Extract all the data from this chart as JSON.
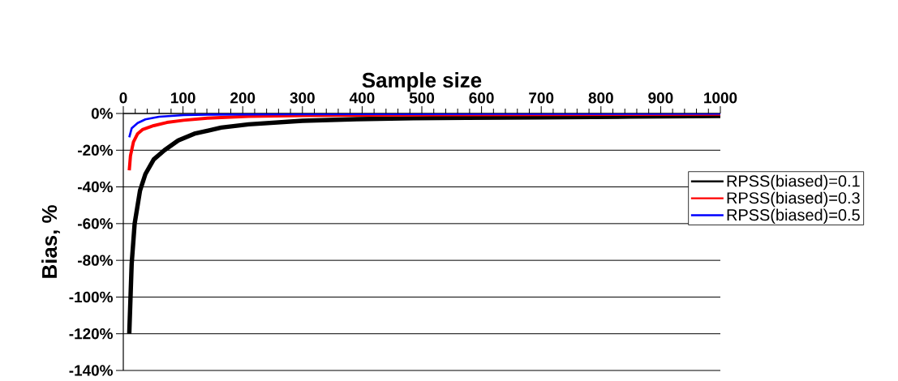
{
  "chart_data": {
    "type": "line",
    "xlabel": "Sample size",
    "ylabel": "Bias, %",
    "xlim": [
      0,
      1000
    ],
    "ylim": [
      -140,
      0
    ],
    "xticks": [
      0,
      {
        "value": 20,
        "label": null
      },
      {
        "value": 40,
        "label": null
      },
      {
        "value": 60,
        "label": null
      },
      {
        "value": 80,
        "label": null
      },
      100,
      {
        "value": 120,
        "label": null
      },
      {
        "value": 140,
        "label": null
      },
      {
        "value": 160,
        "label": null
      },
      {
        "value": 180,
        "label": null
      },
      200,
      {
        "value": 220,
        "label": null
      },
      {
        "value": 240,
        "label": null
      },
      {
        "value": 260,
        "label": null
      },
      {
        "value": 280,
        "label": null
      },
      300,
      {
        "value": 320,
        "label": null
      },
      {
        "value": 340,
        "label": null
      },
      {
        "value": 360,
        "label": null
      },
      {
        "value": 380,
        "label": null
      },
      400,
      {
        "value": 420,
        "label": null
      },
      {
        "value": 440,
        "label": null
      },
      {
        "value": 460,
        "label": null
      },
      {
        "value": 480,
        "label": null
      },
      500,
      {
        "value": 520,
        "label": null
      },
      {
        "value": 540,
        "label": null
      },
      {
        "value": 560,
        "label": null
      },
      {
        "value": 580,
        "label": null
      },
      600,
      {
        "value": 620,
        "label": null
      },
      {
        "value": 640,
        "label": null
      },
      {
        "value": 660,
        "label": null
      },
      {
        "value": 680,
        "label": null
      },
      700,
      {
        "value": 720,
        "label": null
      },
      {
        "value": 740,
        "label": null
      },
      {
        "value": 760,
        "label": null
      },
      {
        "value": 780,
        "label": null
      },
      800,
      {
        "value": 820,
        "label": null
      },
      {
        "value": 840,
        "label": null
      },
      {
        "value": 860,
        "label": null
      },
      {
        "value": 880,
        "label": null
      },
      900,
      {
        "value": 920,
        "label": null
      },
      {
        "value": 940,
        "label": null
      },
      {
        "value": 960,
        "label": null
      },
      {
        "value": 980,
        "label": null
      },
      1000
    ],
    "yticks": [
      {
        "value": 0,
        "label": "0%"
      },
      {
        "value": -20,
        "label": "-20%"
      },
      {
        "value": -40,
        "label": "-40%"
      },
      {
        "value": -60,
        "label": "-60%"
      },
      {
        "value": -80,
        "label": "-80%"
      },
      {
        "value": -100,
        "label": "-100%"
      },
      {
        "value": -120,
        "label": "-120%"
      },
      {
        "value": -140,
        "label": "-140%"
      }
    ],
    "grid": "y",
    "legend": "right",
    "marker": "none",
    "line_style": "solid",
    "series": [
      {
        "name": "RPSS(biased)=0.1",
        "color": "#000000",
        "x": [
          10,
          14,
          19,
          28,
          37,
          51,
          69,
          92,
          119,
          164,
          210,
          300,
          391,
          486,
          575,
          697,
          850,
          1000
        ],
        "values": [
          -120,
          -82,
          -60,
          -42,
          -33,
          -25,
          -20,
          -14.7,
          -11,
          -7.7,
          -5.9,
          -4,
          -3.1,
          -2.6,
          -2.3,
          -2.1,
          -1.7,
          -1.4
        ]
      },
      {
        "name": "RPSS(biased)=0.3",
        "color": "#ff0000",
        "x": [
          10,
          12,
          17,
          24,
          32,
          51,
          73,
          101,
          141,
          210,
          300,
          400,
          550,
          700,
          850,
          1000
        ],
        "values": [
          -31,
          -23,
          -15.5,
          -11,
          -8.8,
          -6.6,
          -4.9,
          -3.7,
          -2.5,
          -1.5,
          -1.1,
          -0.9,
          -0.7,
          -0.5,
          -0.4,
          -0.3
        ]
      },
      {
        "name": "RPSS(biased)=0.5",
        "color": "#0000ff",
        "x": [
          10,
          14,
          24,
          37,
          60,
          101,
          150,
          250,
          400,
          600,
          800,
          1000
        ],
        "values": [
          -13,
          -8.1,
          -5.2,
          -3.2,
          -1.8,
          -0.9,
          -0.6,
          -0.4,
          -0.3,
          -0.2,
          -0.2,
          -0.1
        ]
      }
    ]
  }
}
